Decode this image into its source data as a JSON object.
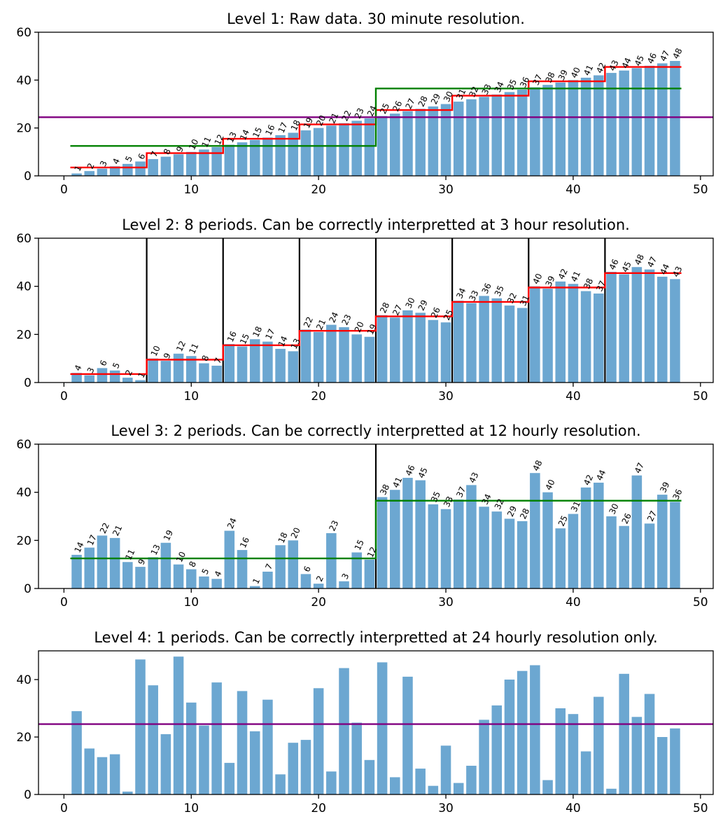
{
  "colors": {
    "bar": "#6ca7d1",
    "step": "#ff0000",
    "mean": "#008000",
    "overall": "#800080",
    "divider": "#000000"
  },
  "chart_data": [
    {
      "type": "bar",
      "title": "Level 1: Raw data. 30 minute resolution.",
      "x": [
        1,
        2,
        3,
        4,
        5,
        6,
        7,
        8,
        9,
        10,
        11,
        12,
        13,
        14,
        15,
        16,
        17,
        18,
        19,
        20,
        21,
        22,
        23,
        24,
        25,
        26,
        27,
        28,
        29,
        30,
        31,
        32,
        33,
        34,
        35,
        36,
        37,
        38,
        39,
        40,
        41,
        42,
        43,
        44,
        45,
        46,
        47,
        48
      ],
      "values": [
        1,
        2,
        3,
        4,
        5,
        6,
        7,
        8,
        9,
        10,
        11,
        12,
        13,
        14,
        15,
        16,
        17,
        18,
        19,
        20,
        21,
        22,
        23,
        24,
        25,
        26,
        27,
        28,
        29,
        30,
        31,
        32,
        33,
        34,
        35,
        36,
        37,
        38,
        39,
        40,
        41,
        42,
        43,
        44,
        45,
        46,
        47,
        48
      ],
      "labels": [
        "1",
        "2",
        "3",
        "4",
        "5",
        "6",
        "7",
        "8",
        "9",
        "10",
        "11",
        "12",
        "13",
        "14",
        "15",
        "16",
        "17",
        "18",
        "19",
        "20",
        "21",
        "22",
        "23",
        "24",
        "25",
        "26",
        "27",
        "28",
        "29",
        "30",
        "31",
        "32",
        "33",
        "34",
        "35",
        "36",
        "37",
        "38",
        "39",
        "40",
        "41",
        "42",
        "43",
        "44",
        "45",
        "46",
        "47",
        "48"
      ],
      "xlim": [
        -2,
        51
      ],
      "ylim": [
        0,
        60
      ],
      "xticks": [
        0,
        10,
        20,
        30,
        40,
        50
      ],
      "yticks": [
        0,
        20,
        40,
        60
      ],
      "steps": [
        {
          "color": "step",
          "segments": [
            [
              0.5,
              6.5,
              3.5
            ],
            [
              6.5,
              12.5,
              9.5
            ],
            [
              12.5,
              18.5,
              15.5
            ],
            [
              18.5,
              24.5,
              21.5
            ],
            [
              24.5,
              30.5,
              27.5
            ],
            [
              30.5,
              36.5,
              33.5
            ],
            [
              36.5,
              42.5,
              39.5
            ],
            [
              42.5,
              48.5,
              45.5
            ]
          ]
        },
        {
          "color": "mean",
          "segments": [
            [
              0.5,
              24.5,
              12.5
            ],
            [
              24.5,
              48.5,
              36.5
            ]
          ]
        }
      ],
      "hlines": [
        {
          "y": 24.5,
          "color": "overall"
        }
      ],
      "vlines": []
    },
    {
      "type": "bar",
      "title": "Level 2: 8 periods. Can be correctly interpretted at 3 hour resolution.",
      "x": [
        1,
        2,
        3,
        4,
        5,
        6,
        7,
        8,
        9,
        10,
        11,
        12,
        13,
        14,
        15,
        16,
        17,
        18,
        19,
        20,
        21,
        22,
        23,
        24,
        25,
        26,
        27,
        28,
        29,
        30,
        31,
        32,
        33,
        34,
        35,
        36,
        37,
        38,
        39,
        40,
        41,
        42,
        43,
        44,
        45,
        46,
        47,
        48
      ],
      "values": [
        4,
        3,
        6,
        5,
        2,
        1,
        10,
        9,
        12,
        11,
        8,
        7,
        16,
        15,
        18,
        17,
        14,
        13,
        22,
        21,
        24,
        23,
        20,
        19,
        28,
        27,
        30,
        29,
        26,
        25,
        34,
        33,
        36,
        35,
        32,
        31,
        40,
        39,
        42,
        41,
        38,
        37,
        46,
        45,
        48,
        47,
        44,
        43
      ],
      "labels": [
        "4",
        "3",
        "6",
        "5",
        "2",
        "1",
        "10",
        "9",
        "12",
        "11",
        "8",
        "7",
        "16",
        "15",
        "18",
        "17",
        "14",
        "13",
        "22",
        "21",
        "24",
        "23",
        "20",
        "19",
        "28",
        "27",
        "30",
        "29",
        "26",
        "25",
        "34",
        "33",
        "36",
        "35",
        "32",
        "31",
        "40",
        "39",
        "42",
        "41",
        "38",
        "37",
        "46",
        "45",
        "48",
        "47",
        "44",
        "43"
      ],
      "xlim": [
        -2,
        51
      ],
      "ylim": [
        0,
        60
      ],
      "xticks": [
        0,
        10,
        20,
        30,
        40,
        50
      ],
      "yticks": [
        0,
        20,
        40,
        60
      ],
      "steps": [
        {
          "color": "step",
          "segments": [
            [
              0.5,
              6.5,
              3.5
            ],
            [
              6.5,
              12.5,
              9.5
            ],
            [
              12.5,
              18.5,
              15.5
            ],
            [
              18.5,
              24.5,
              21.5
            ],
            [
              24.5,
              30.5,
              27.5
            ],
            [
              30.5,
              36.5,
              33.5
            ],
            [
              36.5,
              42.5,
              39.5
            ],
            [
              42.5,
              48.5,
              45.5
            ]
          ]
        }
      ],
      "hlines": [],
      "vlines": [
        6.5,
        12.5,
        18.5,
        24.5,
        30.5,
        36.5,
        42.5
      ]
    },
    {
      "type": "bar",
      "title": "Level 3: 2 periods. Can be correctly interpretted at 12 hourly resolution.",
      "x": [
        1,
        2,
        3,
        4,
        5,
        6,
        7,
        8,
        9,
        10,
        11,
        12,
        13,
        14,
        15,
        16,
        17,
        18,
        19,
        20,
        21,
        22,
        23,
        24,
        25,
        26,
        27,
        28,
        29,
        30,
        31,
        32,
        33,
        34,
        35,
        36,
        37,
        38,
        39,
        40,
        41,
        42,
        43,
        44,
        45,
        46,
        47,
        48
      ],
      "values": [
        14,
        17,
        22,
        21,
        11,
        9,
        13,
        19,
        10,
        8,
        5,
        4,
        24,
        16,
        1,
        7,
        18,
        20,
        6,
        2,
        23,
        3,
        15,
        12,
        38,
        41,
        46,
        45,
        35,
        33,
        37,
        43,
        34,
        32,
        29,
        28,
        48,
        40,
        25,
        31,
        42,
        44,
        30,
        26,
        47,
        27,
        39,
        36
      ],
      "labels": [
        "14",
        "17",
        "22",
        "21",
        "11",
        "9",
        "13",
        "19",
        "10",
        "8",
        "5",
        "4",
        "24",
        "16",
        "1",
        "7",
        "18",
        "20",
        "6",
        "2",
        "23",
        "3",
        "15",
        "12",
        "38",
        "41",
        "46",
        "45",
        "35",
        "33",
        "37",
        "43",
        "34",
        "32",
        "29",
        "28",
        "48",
        "40",
        "25",
        "31",
        "42",
        "44",
        "30",
        "26",
        "47",
        "27",
        "39",
        "36"
      ],
      "xlim": [
        -2,
        51
      ],
      "ylim": [
        0,
        60
      ],
      "xticks": [
        0,
        10,
        20,
        30,
        40,
        50
      ],
      "yticks": [
        0,
        20,
        40,
        60
      ],
      "steps": [
        {
          "color": "mean",
          "segments": [
            [
              0.5,
              24.5,
              12.5
            ],
            [
              24.5,
              48.5,
              36.5
            ]
          ]
        }
      ],
      "hlines": [],
      "vlines": [
        24.5
      ]
    },
    {
      "type": "bar",
      "title": "Level 4: 1 periods. Can be correctly interpretted at 24 hourly resolution only.",
      "x": [
        1,
        2,
        3,
        4,
        5,
        6,
        7,
        8,
        9,
        10,
        11,
        12,
        13,
        14,
        15,
        16,
        17,
        18,
        19,
        20,
        21,
        22,
        23,
        24,
        25,
        26,
        27,
        28,
        29,
        30,
        31,
        32,
        33,
        34,
        35,
        36,
        37,
        38,
        39,
        40,
        41,
        42,
        43,
        44,
        45,
        46,
        47,
        48
      ],
      "values": [
        29,
        16,
        13,
        14,
        1,
        47,
        38,
        21,
        48,
        32,
        24,
        39,
        11,
        36,
        22,
        33,
        7,
        18,
        19,
        37,
        8,
        44,
        25,
        12,
        46,
        6,
        41,
        9,
        3,
        17,
        4,
        10,
        26,
        31,
        40,
        43,
        45,
        5,
        30,
        28,
        15,
        34,
        2,
        42,
        27,
        35,
        20,
        23
      ],
      "labels": [],
      "xlim": [
        -2,
        51
      ],
      "ylim": [
        0,
        50
      ],
      "xticks": [
        0,
        10,
        20,
        30,
        40,
        50
      ],
      "yticks": [
        0,
        20,
        40
      ],
      "steps": [],
      "hlines": [
        {
          "y": 24.5,
          "color": "overall"
        }
      ],
      "vlines": []
    }
  ]
}
